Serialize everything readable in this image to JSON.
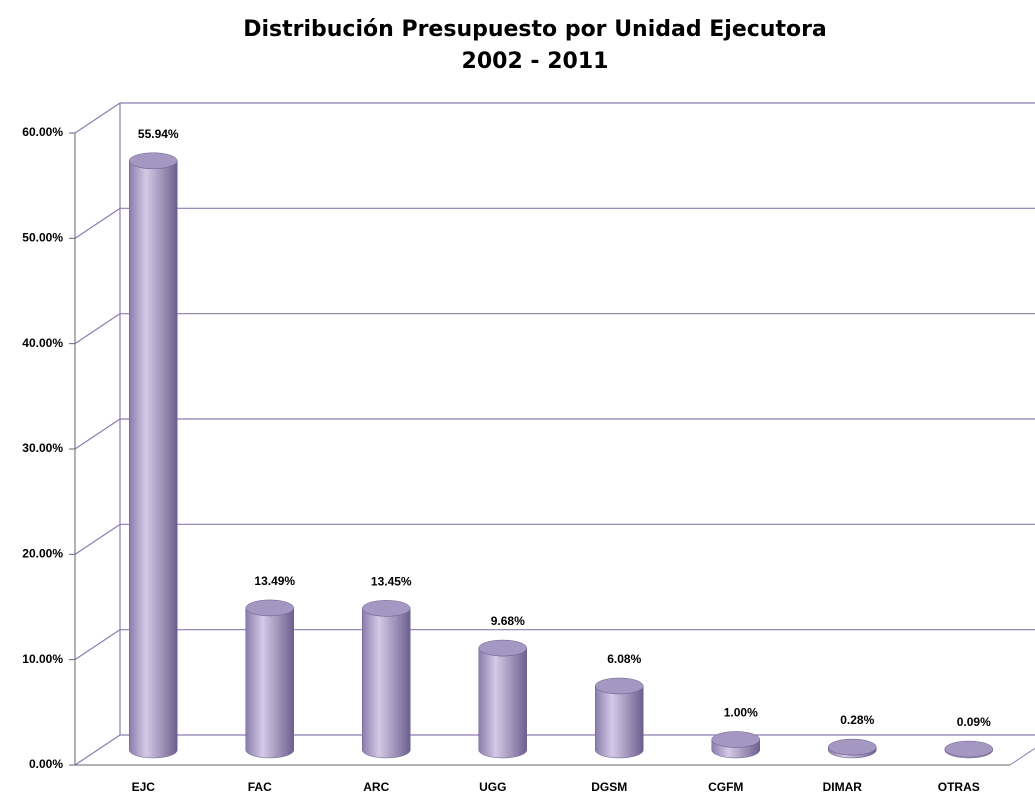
{
  "chart_data": {
    "type": "bar",
    "title": "Distribución Presupuesto por Unidad Ejecutora",
    "subtitle": "2002 - 2011",
    "categories": [
      "EJC",
      "FAC",
      "ARC",
      "UGG",
      "DGSM",
      "CGFM",
      "DIMAR",
      "OTRAS"
    ],
    "values": [
      55.94,
      13.49,
      13.45,
      9.68,
      6.08,
      1.0,
      0.28,
      0.09
    ],
    "value_labels": [
      "55.94%",
      "13.49%",
      "13.45%",
      "9.68%",
      "6.08%",
      "1.00%",
      "0.28%",
      "0.09%"
    ],
    "color": "#a497c2",
    "ylim": [
      0,
      60
    ],
    "yticks": [
      {
        "value": 0,
        "label": "0.00%"
      },
      {
        "value": 10,
        "label": "10.00%"
      },
      {
        "value": 20,
        "label": "20.00%"
      },
      {
        "value": 30,
        "label": "30.00%"
      },
      {
        "value": 40,
        "label": "40.00%"
      },
      {
        "value": 50,
        "label": "50.00%"
      },
      {
        "value": 60,
        "label": "60.00%"
      }
    ],
    "grid": true
  }
}
